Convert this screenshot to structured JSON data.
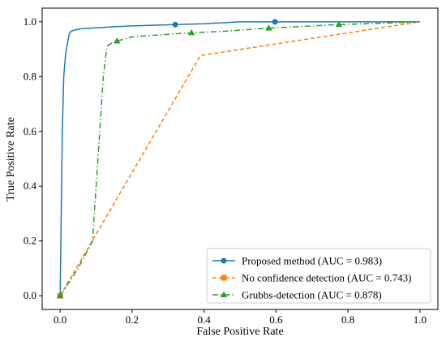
{
  "chart_data": {
    "type": "line",
    "xlabel": "False Positive Rate",
    "ylabel": "True Positive Rate",
    "xlim": [
      -0.05,
      1.05
    ],
    "ylim": [
      -0.05,
      1.05
    ],
    "xticks": [
      0.0,
      0.2,
      0.4,
      0.6,
      0.8,
      1.0
    ],
    "yticks": [
      0.0,
      0.2,
      0.4,
      0.6,
      0.8,
      1.0
    ],
    "xtick_labels": [
      "0.0",
      "0.2",
      "0.4",
      "0.6",
      "0.8",
      "1.0"
    ],
    "ytick_labels": [
      "0.0",
      "0.2",
      "0.4",
      "0.6",
      "0.8",
      "1.0"
    ],
    "grid": false,
    "legend_position": "bottom-right",
    "series": [
      {
        "name": "Proposed method (AUC = 0.983)",
        "color": "#1f77b4",
        "line_style": "solid",
        "marker": "circle",
        "x": [
          0.0,
          0.003,
          0.006,
          0.01,
          0.015,
          0.02,
          0.025,
          0.03,
          0.04,
          0.06,
          0.1,
          0.15,
          0.2,
          0.32,
          0.4,
          0.5,
          0.597,
          0.7,
          0.8,
          0.9,
          1.0
        ],
        "y": [
          0.0,
          0.3,
          0.6,
          0.8,
          0.88,
          0.92,
          0.955,
          0.965,
          0.97,
          0.975,
          0.978,
          0.982,
          0.985,
          0.99,
          0.993,
          1.0,
          1.0,
          1.0,
          1.0,
          1.0,
          1.0
        ],
        "marker_points": [
          [
            0.0,
            0.0
          ],
          [
            0.32,
            0.99
          ],
          [
            0.597,
            1.0
          ]
        ]
      },
      {
        "name": "No confidence detection (AUC = 0.743)",
        "color": "#ff7f0e",
        "line_style": "dashed",
        "marker": "square",
        "x": [
          0.0,
          0.39,
          1.0
        ],
        "y": [
          0.0,
          0.877,
          1.0
        ],
        "marker_points": [
          [
            0.0,
            0.0
          ]
        ]
      },
      {
        "name": "Grubbs-detection (AUC = 0.878)",
        "color": "#2ca02c",
        "line_style": "dashdot",
        "marker": "triangle",
        "x": [
          0.0,
          0.05,
          0.09,
          0.1,
          0.11,
          0.12,
          0.13,
          0.14,
          0.158,
          0.2,
          0.25,
          0.365,
          0.45,
          0.58,
          0.7,
          0.775,
          0.9,
          1.0
        ],
        "y": [
          0.0,
          0.1,
          0.2,
          0.4,
          0.6,
          0.8,
          0.91,
          0.92,
          0.93,
          0.945,
          0.95,
          0.96,
          0.965,
          0.977,
          0.985,
          0.99,
          0.995,
          1.0
        ],
        "marker_points": [
          [
            0.0,
            0.0
          ],
          [
            0.158,
            0.93
          ],
          [
            0.365,
            0.96
          ],
          [
            0.58,
            0.977
          ],
          [
            0.775,
            0.99
          ]
        ]
      }
    ]
  }
}
